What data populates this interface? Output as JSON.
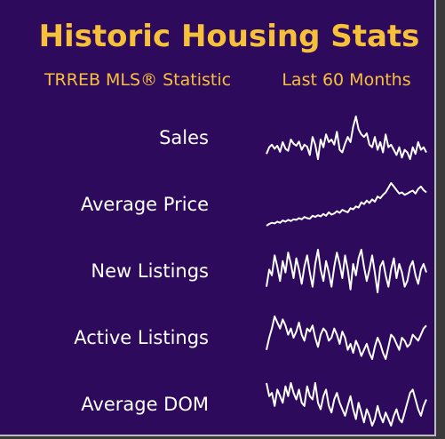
{
  "title": "Historic Housing Stats",
  "header": {
    "statistic": "TRREB MLS® Statistic",
    "period": "Last 60 Months"
  },
  "rows": [
    {
      "label": "Sales",
      "values": [
        22,
        35,
        40,
        32,
        38,
        26,
        45,
        32,
        28,
        50,
        42,
        38,
        46,
        30,
        40,
        36,
        20,
        55,
        40,
        12,
        50,
        35,
        60,
        45,
        50,
        40,
        65,
        30,
        25,
        42,
        55,
        45,
        75,
        95,
        70,
        60,
        55,
        62,
        40,
        35,
        55,
        30,
        45,
        25,
        60,
        35,
        40,
        30,
        20,
        35,
        15,
        30,
        25,
        12,
        35,
        22,
        45,
        30,
        35,
        25
      ]
    },
    {
      "label": "Average Price",
      "values": [
        5,
        8,
        10,
        9,
        12,
        10,
        14,
        12,
        15,
        13,
        16,
        15,
        18,
        16,
        20,
        18,
        17,
        22,
        20,
        23,
        21,
        25,
        22,
        28,
        24,
        26,
        30,
        27,
        32,
        30,
        28,
        35,
        33,
        38,
        36,
        45,
        42,
        48,
        44,
        50,
        46,
        55,
        52,
        58,
        62,
        70,
        78,
        72,
        66,
        60,
        62,
        58,
        60,
        63,
        65,
        60,
        68,
        72,
        66,
        62
      ]
    },
    {
      "label": "New Listings",
      "values": [
        30,
        60,
        50,
        85,
        65,
        40,
        75,
        55,
        90,
        70,
        45,
        80,
        60,
        35,
        65,
        85,
        55,
        30,
        70,
        95,
        60,
        40,
        75,
        55,
        30,
        65,
        90,
        70,
        45,
        85,
        60,
        25,
        70,
        50,
        80,
        95,
        65,
        40,
        60,
        85,
        55,
        20,
        65,
        75,
        50,
        30,
        60,
        80,
        45,
        70,
        55,
        30,
        40,
        65,
        75,
        50,
        35,
        60,
        70,
        55
      ]
    },
    {
      "label": "Active Listings",
      "values": [
        35,
        55,
        70,
        90,
        80,
        70,
        85,
        75,
        60,
        70,
        55,
        65,
        80,
        60,
        50,
        70,
        65,
        75,
        55,
        40,
        60,
        70,
        65,
        50,
        55,
        70,
        60,
        45,
        65,
        55,
        35,
        45,
        30,
        50,
        40,
        25,
        35,
        45,
        30,
        20,
        40,
        55,
        45,
        30,
        20,
        40,
        60,
        55,
        45,
        35,
        55,
        50,
        40,
        45,
        60,
        55,
        50,
        60,
        70,
        75
      ]
    },
    {
      "label": "Average DOM",
      "values": [
        90,
        70,
        75,
        55,
        80,
        70,
        60,
        85,
        70,
        90,
        75,
        65,
        80,
        60,
        55,
        85,
        70,
        65,
        90,
        60,
        50,
        70,
        80,
        55,
        45,
        65,
        75,
        60,
        50,
        40,
        55,
        70,
        50,
        35,
        60,
        45,
        30,
        50,
        40,
        25,
        35,
        55,
        40,
        30,
        45,
        35,
        25,
        40,
        50,
        35,
        30,
        45,
        60,
        75,
        80,
        65,
        50,
        40,
        55,
        65
      ]
    }
  ]
}
